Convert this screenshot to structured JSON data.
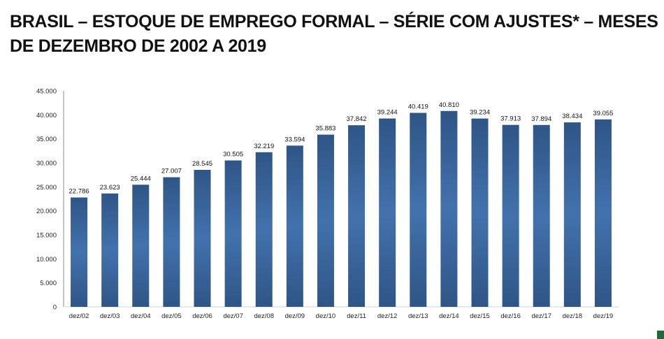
{
  "title": "BRASIL – ESTOQUE DE EMPREGO FORMAL – SÉRIE COM AJUSTES* – MESES DE DEZEMBRO DE 2002 A 2019",
  "colors": {
    "bar": "#3e6fa8",
    "bar_dark": "#2f5586",
    "accent": "#1e6b3a"
  },
  "chart_data": {
    "type": "bar",
    "title": "",
    "xlabel": "",
    "ylabel": "",
    "ylim": [
      0,
      45000
    ],
    "yticks": [
      "0",
      "5.000",
      "10.000",
      "15.000",
      "20.000",
      "25.000",
      "30.000",
      "35.000",
      "40.000",
      "45.000"
    ],
    "ytick_values": [
      0,
      5000,
      10000,
      15000,
      20000,
      25000,
      30000,
      35000,
      40000,
      45000
    ],
    "grid": false,
    "categories": [
      "dez/02",
      "dez/03",
      "dez/04",
      "dez/05",
      "dez/06",
      "dez/07",
      "dez/08",
      "dez/09",
      "dez/10",
      "dez/11",
      "dez/12",
      "dez/13",
      "dez/14",
      "dez/15",
      "dez/16",
      "dez/17",
      "dez/18",
      "dez/19"
    ],
    "values": [
      22786,
      23623,
      25444,
      27007,
      28545,
      30505,
      32219,
      33594,
      35883,
      37842,
      39244,
      40419,
      40810,
      39234,
      37913,
      37894,
      38434,
      39055
    ],
    "data_labels": [
      "22.786",
      "23.623",
      "25.444",
      "27.007",
      "28.545",
      "30.505",
      "32.219",
      "33.594",
      "35.883",
      "37.842",
      "39.244",
      "40.419",
      "40.810",
      "39.234",
      "37.913",
      "37.894",
      "38.434",
      "39.055"
    ]
  }
}
